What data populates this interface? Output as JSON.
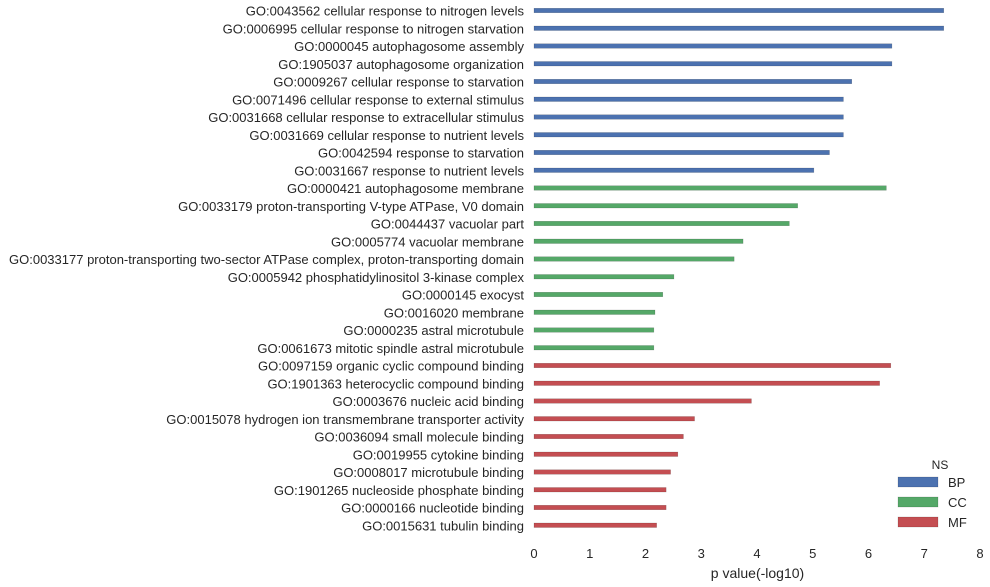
{
  "chart_data": {
    "type": "bar",
    "orientation": "horizontal",
    "title": "",
    "xlabel": "p value(-log10)",
    "ylabel": "",
    "xlim": [
      0,
      8
    ],
    "xticks": [
      0,
      1,
      2,
      3,
      4,
      5,
      6,
      7,
      8
    ],
    "grid": false,
    "legend": {
      "title": "NS",
      "position": "bottom-right",
      "entries": [
        {
          "name": "BP",
          "color": "#4c72b0"
        },
        {
          "name": "CC",
          "color": "#55a868"
        },
        {
          "name": "MF",
          "color": "#c44e52"
        }
      ]
    },
    "bars": [
      {
        "label": "GO:0043562 cellular response to nitrogen levels",
        "value": 7.35,
        "ns": "BP"
      },
      {
        "label": "GO:0006995 cellular response to nitrogen starvation",
        "value": 7.35,
        "ns": "BP"
      },
      {
        "label": "GO:0000045 autophagosome assembly",
        "value": 6.42,
        "ns": "BP"
      },
      {
        "label": "GO:1905037 autophagosome organization",
        "value": 6.42,
        "ns": "BP"
      },
      {
        "label": "GO:0009267 cellular response to starvation",
        "value": 5.7,
        "ns": "BP"
      },
      {
        "label": "GO:0071496 cellular response to external stimulus",
        "value": 5.55,
        "ns": "BP"
      },
      {
        "label": "GO:0031668 cellular response to extracellular stimulus",
        "value": 5.55,
        "ns": "BP"
      },
      {
        "label": "GO:0031669 cellular response to nutrient levels",
        "value": 5.55,
        "ns": "BP"
      },
      {
        "label": "GO:0042594 response to starvation",
        "value": 5.3,
        "ns": "BP"
      },
      {
        "label": "GO:0031667 response to nutrient levels",
        "value": 5.02,
        "ns": "BP"
      },
      {
        "label": "GO:0000421 autophagosome membrane",
        "value": 6.32,
        "ns": "CC"
      },
      {
        "label": "GO:0033179 proton-transporting V-type ATPase, V0 domain",
        "value": 4.73,
        "ns": "CC"
      },
      {
        "label": "GO:0044437 vacuolar part",
        "value": 4.58,
        "ns": "CC"
      },
      {
        "label": "GO:0005774 vacuolar membrane",
        "value": 3.75,
        "ns": "CC"
      },
      {
        "label": "GO:0033177 proton-transporting two-sector ATPase complex, proton-transporting domain",
        "value": 3.59,
        "ns": "CC"
      },
      {
        "label": "GO:0005942 phosphatidylinositol 3-kinase complex",
        "value": 2.51,
        "ns": "CC"
      },
      {
        "label": "GO:0000145 exocyst",
        "value": 2.31,
        "ns": "CC"
      },
      {
        "label": "GO:0016020 membrane",
        "value": 2.17,
        "ns": "CC"
      },
      {
        "label": "GO:0000235 astral microtubule",
        "value": 2.15,
        "ns": "CC"
      },
      {
        "label": "GO:0061673 mitotic spindle astral microtubule",
        "value": 2.15,
        "ns": "CC"
      },
      {
        "label": "GO:0097159 organic cyclic compound binding",
        "value": 6.4,
        "ns": "MF"
      },
      {
        "label": "GO:1901363 heterocyclic compound binding",
        "value": 6.2,
        "ns": "MF"
      },
      {
        "label": "GO:0003676 nucleic acid binding",
        "value": 3.9,
        "ns": "MF"
      },
      {
        "label": "GO:0015078 hydrogen ion transmembrane transporter activity",
        "value": 2.88,
        "ns": "MF"
      },
      {
        "label": "GO:0036094 small molecule binding",
        "value": 2.68,
        "ns": "MF"
      },
      {
        "label": "GO:0019955 cytokine binding",
        "value": 2.58,
        "ns": "MF"
      },
      {
        "label": "GO:0008017 microtubule binding",
        "value": 2.45,
        "ns": "MF"
      },
      {
        "label": "GO:1901265 nucleoside phosphate binding",
        "value": 2.37,
        "ns": "MF"
      },
      {
        "label": "GO:0000166 nucleotide binding",
        "value": 2.37,
        "ns": "MF"
      },
      {
        "label": "GO:0015631 tubulin binding",
        "value": 2.2,
        "ns": "MF"
      }
    ]
  }
}
